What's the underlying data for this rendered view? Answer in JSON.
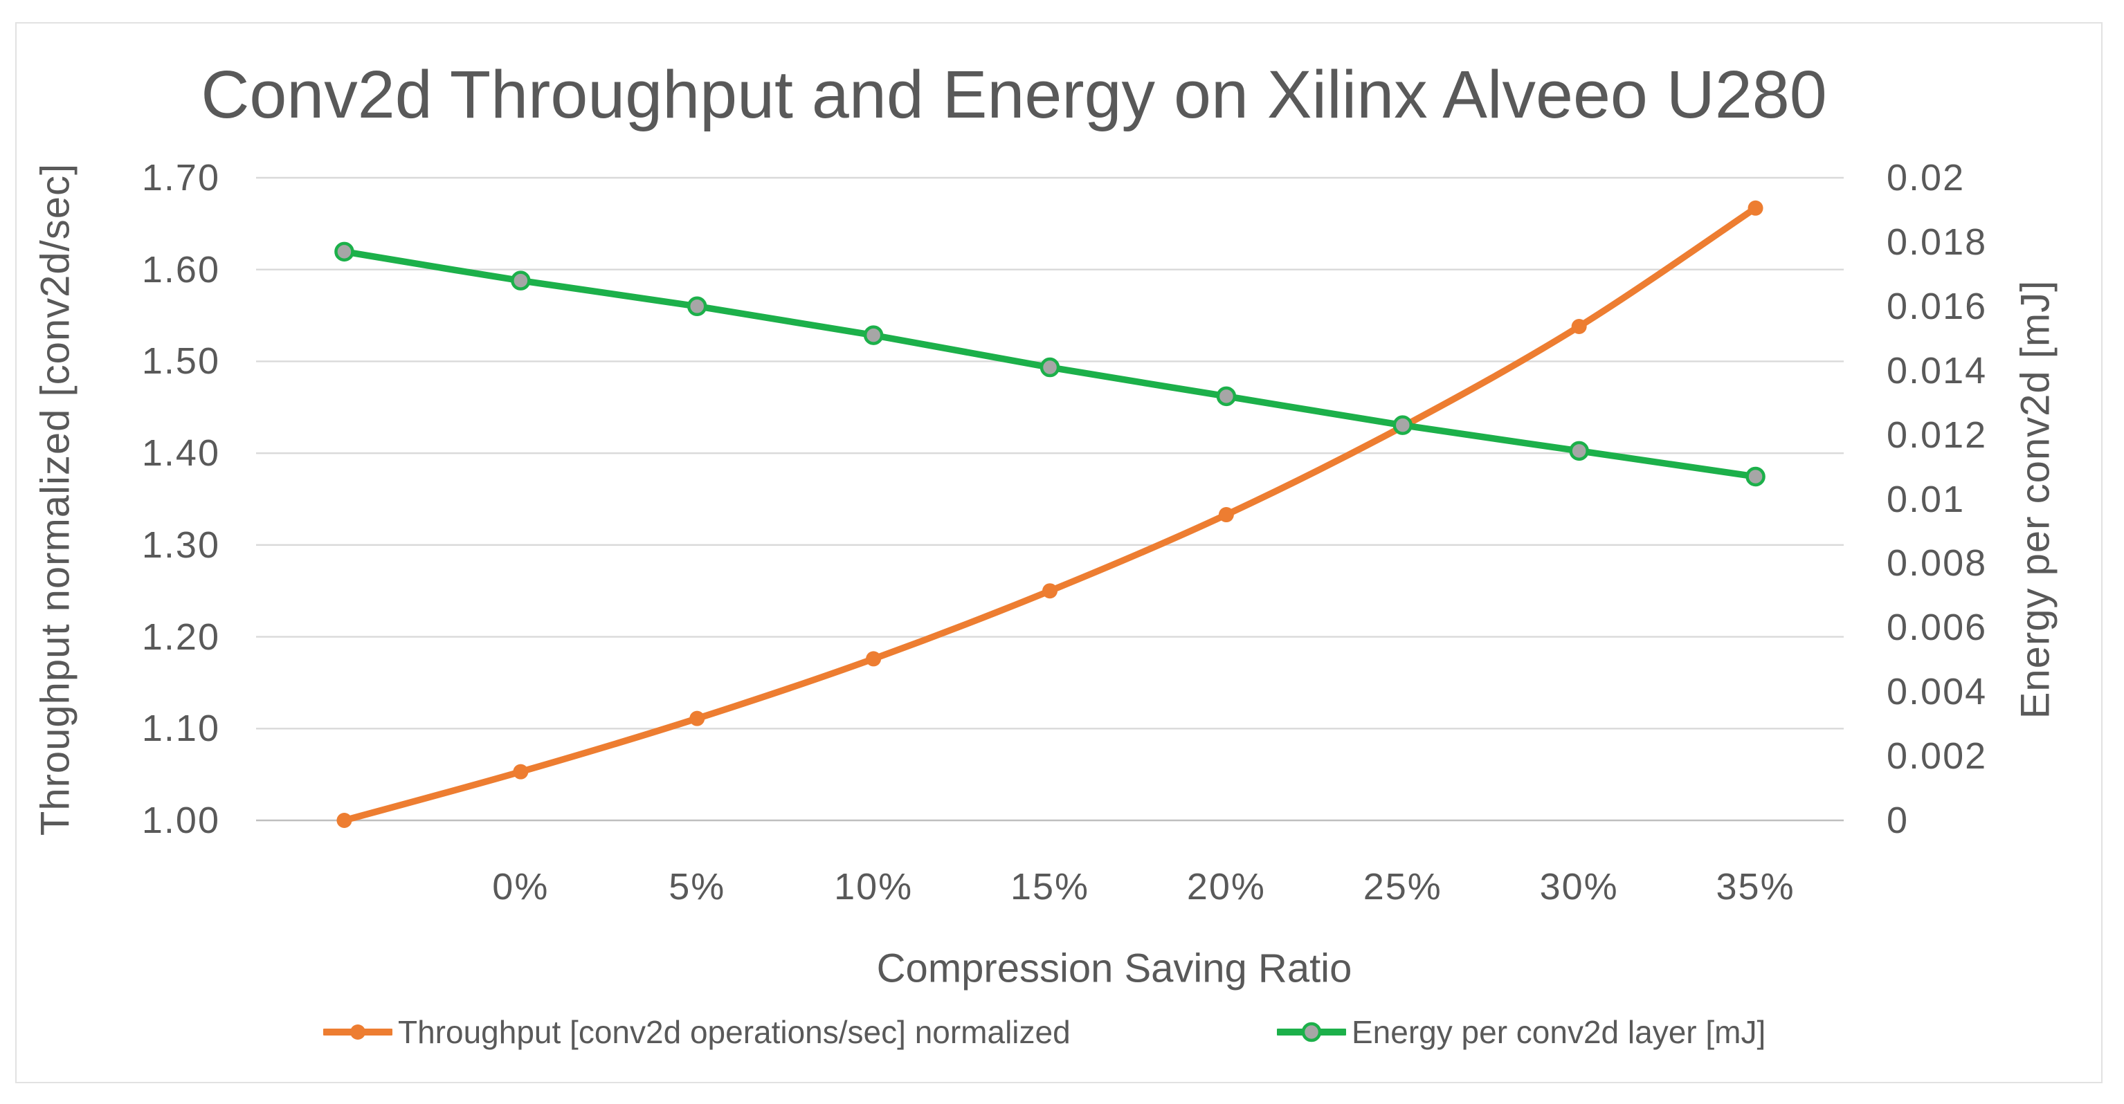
{
  "chart_data": {
    "type": "line",
    "title": "Conv2d Throughput and Energy on Xilinx Alveeo U280",
    "categories": [
      "",
      "0%",
      "5%",
      "10%",
      "15%",
      "20%",
      "25%",
      "30%",
      "35%"
    ],
    "series": [
      {
        "name": "Throughput [conv2d operations/sec] normalized",
        "axis": "left",
        "color": "#ED7D31",
        "marker": {
          "fill": "#ED7D31",
          "stroke": "#ED7D31",
          "radius": 11,
          "stroke_width": 0
        },
        "values": [
          1.0,
          1.053,
          1.111,
          1.176,
          1.25,
          1.333,
          1.429,
          1.538,
          1.667
        ]
      },
      {
        "name": "Energy per conv2d layer [mJ]",
        "axis": "right",
        "color": "#1CB04A",
        "marker": {
          "fill": "#A6A6A6",
          "stroke": "#1CB04A",
          "radius": 12,
          "stroke_width": 4.5
        },
        "values": [
          0.0177,
          0.0168,
          0.016,
          0.0151,
          0.0141,
          0.0132,
          0.0123,
          0.0115,
          0.0107
        ]
      }
    ],
    "left_axis": {
      "title": "Throughput normalized  [conv2d/sec]",
      "min": 1.0,
      "max": 1.7,
      "tick_labels": [
        "1.70",
        "1.60",
        "1.50",
        "1.40",
        "1.30",
        "1.20",
        "1.10",
        "1.00"
      ]
    },
    "right_axis": {
      "title": "Energy per conv2d [mJ]",
      "min": 0,
      "max": 0.02,
      "tick_labels": [
        "0.02",
        "0.018",
        "0.016",
        "0.014",
        "0.012",
        "0.01",
        "0.008",
        "0.006",
        "0.004",
        "0.002",
        "0"
      ]
    },
    "x_axis": {
      "title": "Compression Saving Ratio"
    },
    "legend_position": "bottom",
    "grid": true,
    "colors": {
      "text": "#595959",
      "gridline": "#D9D9D9",
      "axis_line": "#BFBFBF",
      "frame_border": "#E2E2E2",
      "background": "#FFFFFF"
    }
  }
}
